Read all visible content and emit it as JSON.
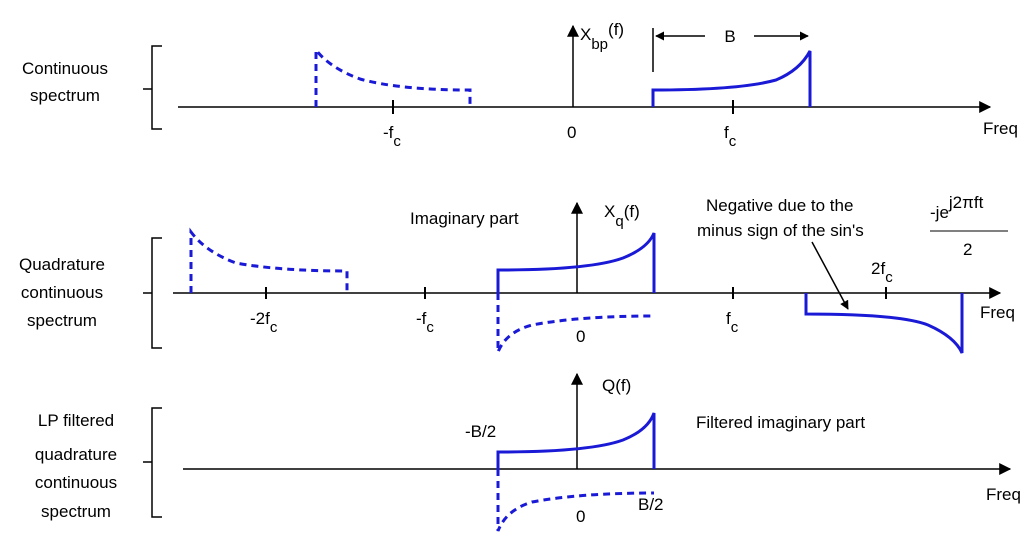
{
  "panel1": {
    "row_label": [
      "Continuous",
      "spectrum"
    ],
    "title_main": "X",
    "title_sub": "bp",
    "title_tail": "(f)",
    "bandwidth": "B",
    "tick_neg_fc": "-f",
    "tick_neg_fc_sub": "c",
    "tick_zero": "0",
    "tick_fc": "f",
    "tick_fc_sub": "c",
    "axis_label": "Freq"
  },
  "panel2": {
    "row_label": [
      "Quadrature",
      "continuous",
      "spectrum"
    ],
    "imag_label": "Imaginary part",
    "title_main": "X",
    "title_sub": "q",
    "title_tail": "(f)",
    "note": [
      "Negative due to the",
      "minus sign of the sin's"
    ],
    "formula_main": "-je",
    "formula_sup": "j2πft",
    "formula_den": "2",
    "tick_neg_2fc": "-2f",
    "tick_neg_2fc_sub": "c",
    "tick_neg_fc": "-f",
    "tick_neg_fc_sub": "c",
    "tick_zero": "0",
    "tick_fc": "f",
    "tick_fc_sub": "c",
    "tick_2fc": "2f",
    "tick_2fc_sub": "c",
    "axis_label": "Freq"
  },
  "panel3": {
    "row_label": [
      "LP filtered",
      "quadrature",
      "continuous",
      "spectrum"
    ],
    "title": "Q(f)",
    "filtered_label": "Filtered imaginary part",
    "neg_half_b": "-B/2",
    "half_b": "B/2",
    "tick_zero": "0",
    "axis_label": "Freq"
  },
  "colors": {
    "spectrum": "#1a1ad6",
    "axis": "#000000"
  }
}
